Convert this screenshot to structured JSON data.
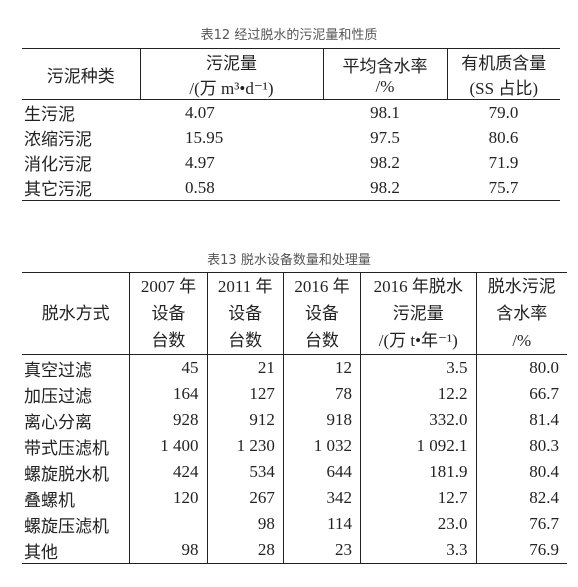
{
  "table12": {
    "title": "表12 经过脱水的污泥量和性质",
    "header": [
      [
        "污泥种类"
      ],
      [
        "污泥量",
        "/(万 m³•d⁻¹)"
      ],
      [
        "平均含水率",
        "/%"
      ],
      [
        "有机质含量",
        "(SS 占比)"
      ]
    ],
    "rows": [
      [
        "生污泥",
        "4.07",
        "98.1",
        "79.0"
      ],
      [
        "浓缩污泥",
        "15.95",
        "97.5",
        "80.6"
      ],
      [
        "消化污泥",
        "4.97",
        "98.2",
        "71.9"
      ],
      [
        "其它污泥",
        "0.58",
        "98.2",
        "75.7"
      ]
    ]
  },
  "table13": {
    "title": "表13 脱水设备数量和处理量",
    "header": [
      [
        "脱水方式"
      ],
      [
        "2007 年",
        "设备",
        "台数"
      ],
      [
        "2011 年",
        "设备",
        "台数"
      ],
      [
        "2016 年",
        "设备",
        "台数"
      ],
      [
        "2016 年脱水",
        "污泥量",
        "/(万 t•年⁻¹)"
      ],
      [
        "脱水污泥",
        "含水率",
        "/%"
      ]
    ],
    "rows": [
      [
        "真空过滤",
        "45",
        "21",
        "12",
        "3.5",
        "80.0"
      ],
      [
        "加压过滤",
        "164",
        "127",
        "78",
        "12.2",
        "66.7"
      ],
      [
        "离心分离",
        "928",
        "912",
        "918",
        "332.0",
        "81.4"
      ],
      [
        "带式压滤机",
        "1 400",
        "1 230",
        "1 032",
        "1 092.1",
        "80.3"
      ],
      [
        "螺旋脱水机",
        "424",
        "534",
        "644",
        "181.9",
        "80.4"
      ],
      [
        "叠螺机",
        "120",
        "267",
        "342",
        "12.7",
        "82.4"
      ],
      [
        "螺旋压滤机",
        null,
        "98",
        "114",
        "23.0",
        "76.7"
      ],
      [
        "其他",
        "98",
        "28",
        "23",
        "3.3",
        "76.9"
      ]
    ]
  }
}
